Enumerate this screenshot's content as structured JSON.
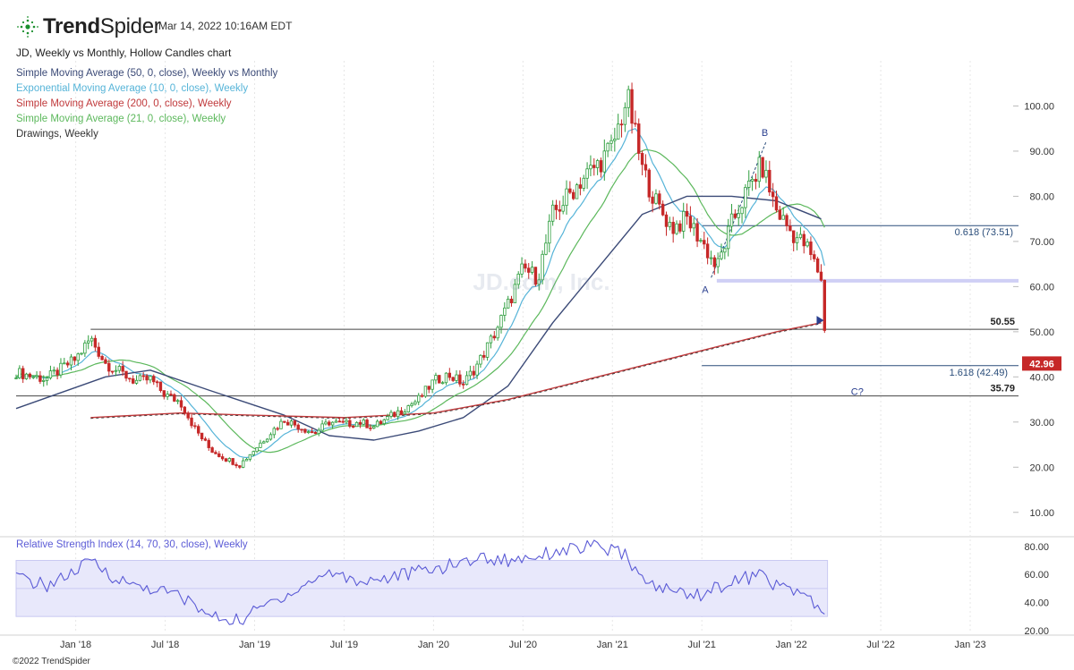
{
  "header": {
    "brand_bold": "Trend",
    "brand_light": "Spider",
    "timestamp": "Mar 14, 2022 10:16AM EDT",
    "chart_title": "JD, Weekly vs Monthly, Hollow Candles chart",
    "watermark": "JD.com, Inc."
  },
  "legend": [
    {
      "label": "Simple Moving Average (50, 0, close), Weekly vs Monthly",
      "color": "#3b4a77"
    },
    {
      "label": "Exponential Moving Average (10, 0, close), Weekly",
      "color": "#56b4d8"
    },
    {
      "label": "Simple Moving Average (200, 0, close), Weekly",
      "color": "#c0393b"
    },
    {
      "label": "Simple Moving Average (21, 0, close), Weekly",
      "color": "#5cb85c"
    },
    {
      "label": "Drawings, Weekly",
      "color": "#333333"
    }
  ],
  "rsi_label": "Relative Strength Index (14, 70, 30, close), Weekly",
  "copyright": "©2022 TrendSpider",
  "colors": {
    "up": "#2e9e3e",
    "down": "#c62828",
    "sma50": "#3b4a77",
    "ema10": "#56b4d8",
    "sma200": "#c0393b",
    "sma21": "#5cb85c",
    "rsi": "#5b5bd6",
    "price_tag": "#c62828"
  },
  "chart_data": {
    "type": "candlestick",
    "title": "JD, Weekly vs Monthly, Hollow Candles chart",
    "price_axis": {
      "ticks": [
        10,
        20,
        30,
        40,
        50,
        60,
        70,
        80,
        90,
        100
      ],
      "labels": [
        "10.00",
        "20.00",
        "30.00",
        "40.00",
        "50.00",
        "60.00",
        "70.00",
        "80.00",
        "90.00",
        "100.00"
      ],
      "range": [
        5,
        110
      ]
    },
    "time_axis": {
      "labels": [
        "Jan '18",
        "Jul '18",
        "Jan '19",
        "Jul '19",
        "Jan '20",
        "Jul '20",
        "Jan '21",
        "Jul '21",
        "Jan '22",
        "Jul '22",
        "Jan '23"
      ],
      "range": [
        "2017-09",
        "2023-04"
      ]
    },
    "rsi_axis": {
      "ticks": [
        20,
        40,
        60,
        80
      ],
      "labels": [
        "20.00",
        "40.00",
        "60.00",
        "80.00"
      ],
      "range": [
        18,
        85
      ],
      "band": [
        30,
        70
      ]
    },
    "current_price": {
      "value": 42.96,
      "label": "42.96"
    },
    "levels": [
      {
        "value": 50.55,
        "label": "50.55"
      },
      {
        "value": 35.79,
        "label": "35.79"
      },
      {
        "value": 73.51,
        "label": "0.618 (73.51)"
      },
      {
        "value": 42.49,
        "label": "1.618 (42.49)"
      },
      {
        "value": 61.3,
        "label": ""
      }
    ],
    "wave_labels": [
      {
        "text": "A",
        "date": "2021-07",
        "price": 61.0
      },
      {
        "text": "B",
        "date": "2021-11",
        "price": 93.0
      },
      {
        "text": "C?",
        "date": "2022-05",
        "price": 38.0
      }
    ],
    "price_path": [
      [
        "2017-09",
        41
      ],
      [
        "2017-11",
        39.5
      ],
      [
        "2018-01",
        44
      ],
      [
        "2018-02",
        48.5
      ],
      [
        "2018-03",
        43
      ],
      [
        "2018-05",
        39
      ],
      [
        "2018-06",
        39.5
      ],
      [
        "2018-07",
        36
      ],
      [
        "2018-08",
        34.5
      ],
      [
        "2018-09",
        28.5
      ],
      [
        "2018-10",
        24
      ],
      [
        "2018-11",
        22
      ],
      [
        "2018-12",
        20.5
      ],
      [
        "2019-01",
        24
      ],
      [
        "2019-02",
        27.5
      ],
      [
        "2019-03",
        30.5
      ],
      [
        "2019-05",
        27.5
      ],
      [
        "2019-06",
        30
      ],
      [
        "2019-07",
        29.5
      ],
      [
        "2019-08",
        30
      ],
      [
        "2019-09",
        29
      ],
      [
        "2019-10",
        31
      ],
      [
        "2019-12",
        35
      ],
      [
        "2020-01",
        39
      ],
      [
        "2020-02",
        40.5
      ],
      [
        "2020-03",
        38.5
      ],
      [
        "2020-04",
        43
      ],
      [
        "2020-05",
        49
      ],
      [
        "2020-06",
        56
      ],
      [
        "2020-07",
        64
      ],
      [
        "2020-08",
        62
      ],
      [
        "2020-09",
        76
      ],
      [
        "2020-10",
        80
      ],
      [
        "2020-11",
        84
      ],
      [
        "2020-12",
        87
      ],
      [
        "2021-01",
        91
      ],
      [
        "2021-02",
        102
      ],
      [
        "2021-03",
        86
      ],
      [
        "2021-04",
        78
      ],
      [
        "2021-05",
        73
      ],
      [
        "2021-06",
        75
      ],
      [
        "2021-07",
        70
      ],
      [
        "2021-08",
        64
      ],
      [
        "2021-09",
        74
      ],
      [
        "2021-10",
        81
      ],
      [
        "2021-11",
        87
      ],
      [
        "2021-12",
        77
      ],
      [
        "2022-01",
        72
      ],
      [
        "2022-02",
        69
      ],
      [
        "2022-03",
        62
      ],
      [
        "2022-03-08",
        50
      ],
      [
        "2022-03-14",
        42.96
      ]
    ],
    "series": [
      {
        "name": "Simple Moving Average (50, 0, close), Weekly vs Monthly",
        "points": [
          [
            "2017-09",
            33
          ],
          [
            "2018-03",
            40
          ],
          [
            "2018-06",
            41.5
          ],
          [
            "2018-10",
            37
          ],
          [
            "2019-03",
            31.5
          ],
          [
            "2019-06",
            27
          ],
          [
            "2019-09",
            26
          ],
          [
            "2019-12",
            28
          ],
          [
            "2020-03",
            31
          ],
          [
            "2020-06",
            38
          ],
          [
            "2020-09",
            52
          ],
          [
            "2020-12",
            64
          ],
          [
            "2021-03",
            76
          ],
          [
            "2021-06",
            80
          ],
          [
            "2021-09",
            80
          ],
          [
            "2021-12",
            79
          ],
          [
            "2022-03",
            75
          ]
        ]
      },
      {
        "name": "Simple Moving Average (200, 0, close), Weekly",
        "points": [
          [
            "2018-02",
            31
          ],
          [
            "2018-08",
            32
          ],
          [
            "2019-01",
            31.5
          ],
          [
            "2019-07",
            31
          ],
          [
            "2020-01",
            32
          ],
          [
            "2020-06",
            35
          ],
          [
            "2020-12",
            40
          ],
          [
            "2021-06",
            45
          ],
          [
            "2021-12",
            50
          ],
          [
            "2022-03",
            52
          ]
        ]
      },
      {
        "name": "Relative Strength Index (14, 70, 30, close), Weekly",
        "points": [
          [
            "2017-09",
            58
          ],
          [
            "2017-11",
            52
          ],
          [
            "2018-01",
            62
          ],
          [
            "2018-02",
            70
          ],
          [
            "2018-04",
            55
          ],
          [
            "2018-06",
            50
          ],
          [
            "2018-08",
            45
          ],
          [
            "2018-10",
            30
          ],
          [
            "2018-12",
            27
          ],
          [
            "2019-02",
            40
          ],
          [
            "2019-04",
            50
          ],
          [
            "2019-06",
            62
          ],
          [
            "2019-08",
            55
          ],
          [
            "2019-10",
            58
          ],
          [
            "2019-12",
            62
          ],
          [
            "2020-02",
            66
          ],
          [
            "2020-04",
            72
          ],
          [
            "2020-06",
            70
          ],
          [
            "2020-08",
            74
          ],
          [
            "2020-10",
            78
          ],
          [
            "2020-12",
            80
          ],
          [
            "2021-02",
            73
          ],
          [
            "2021-03",
            55
          ],
          [
            "2021-05",
            48
          ],
          [
            "2021-07",
            46
          ],
          [
            "2021-09",
            55
          ],
          [
            "2021-11",
            60
          ],
          [
            "2021-12",
            52
          ],
          [
            "2022-02",
            46
          ],
          [
            "2022-03",
            30
          ]
        ]
      }
    ]
  }
}
